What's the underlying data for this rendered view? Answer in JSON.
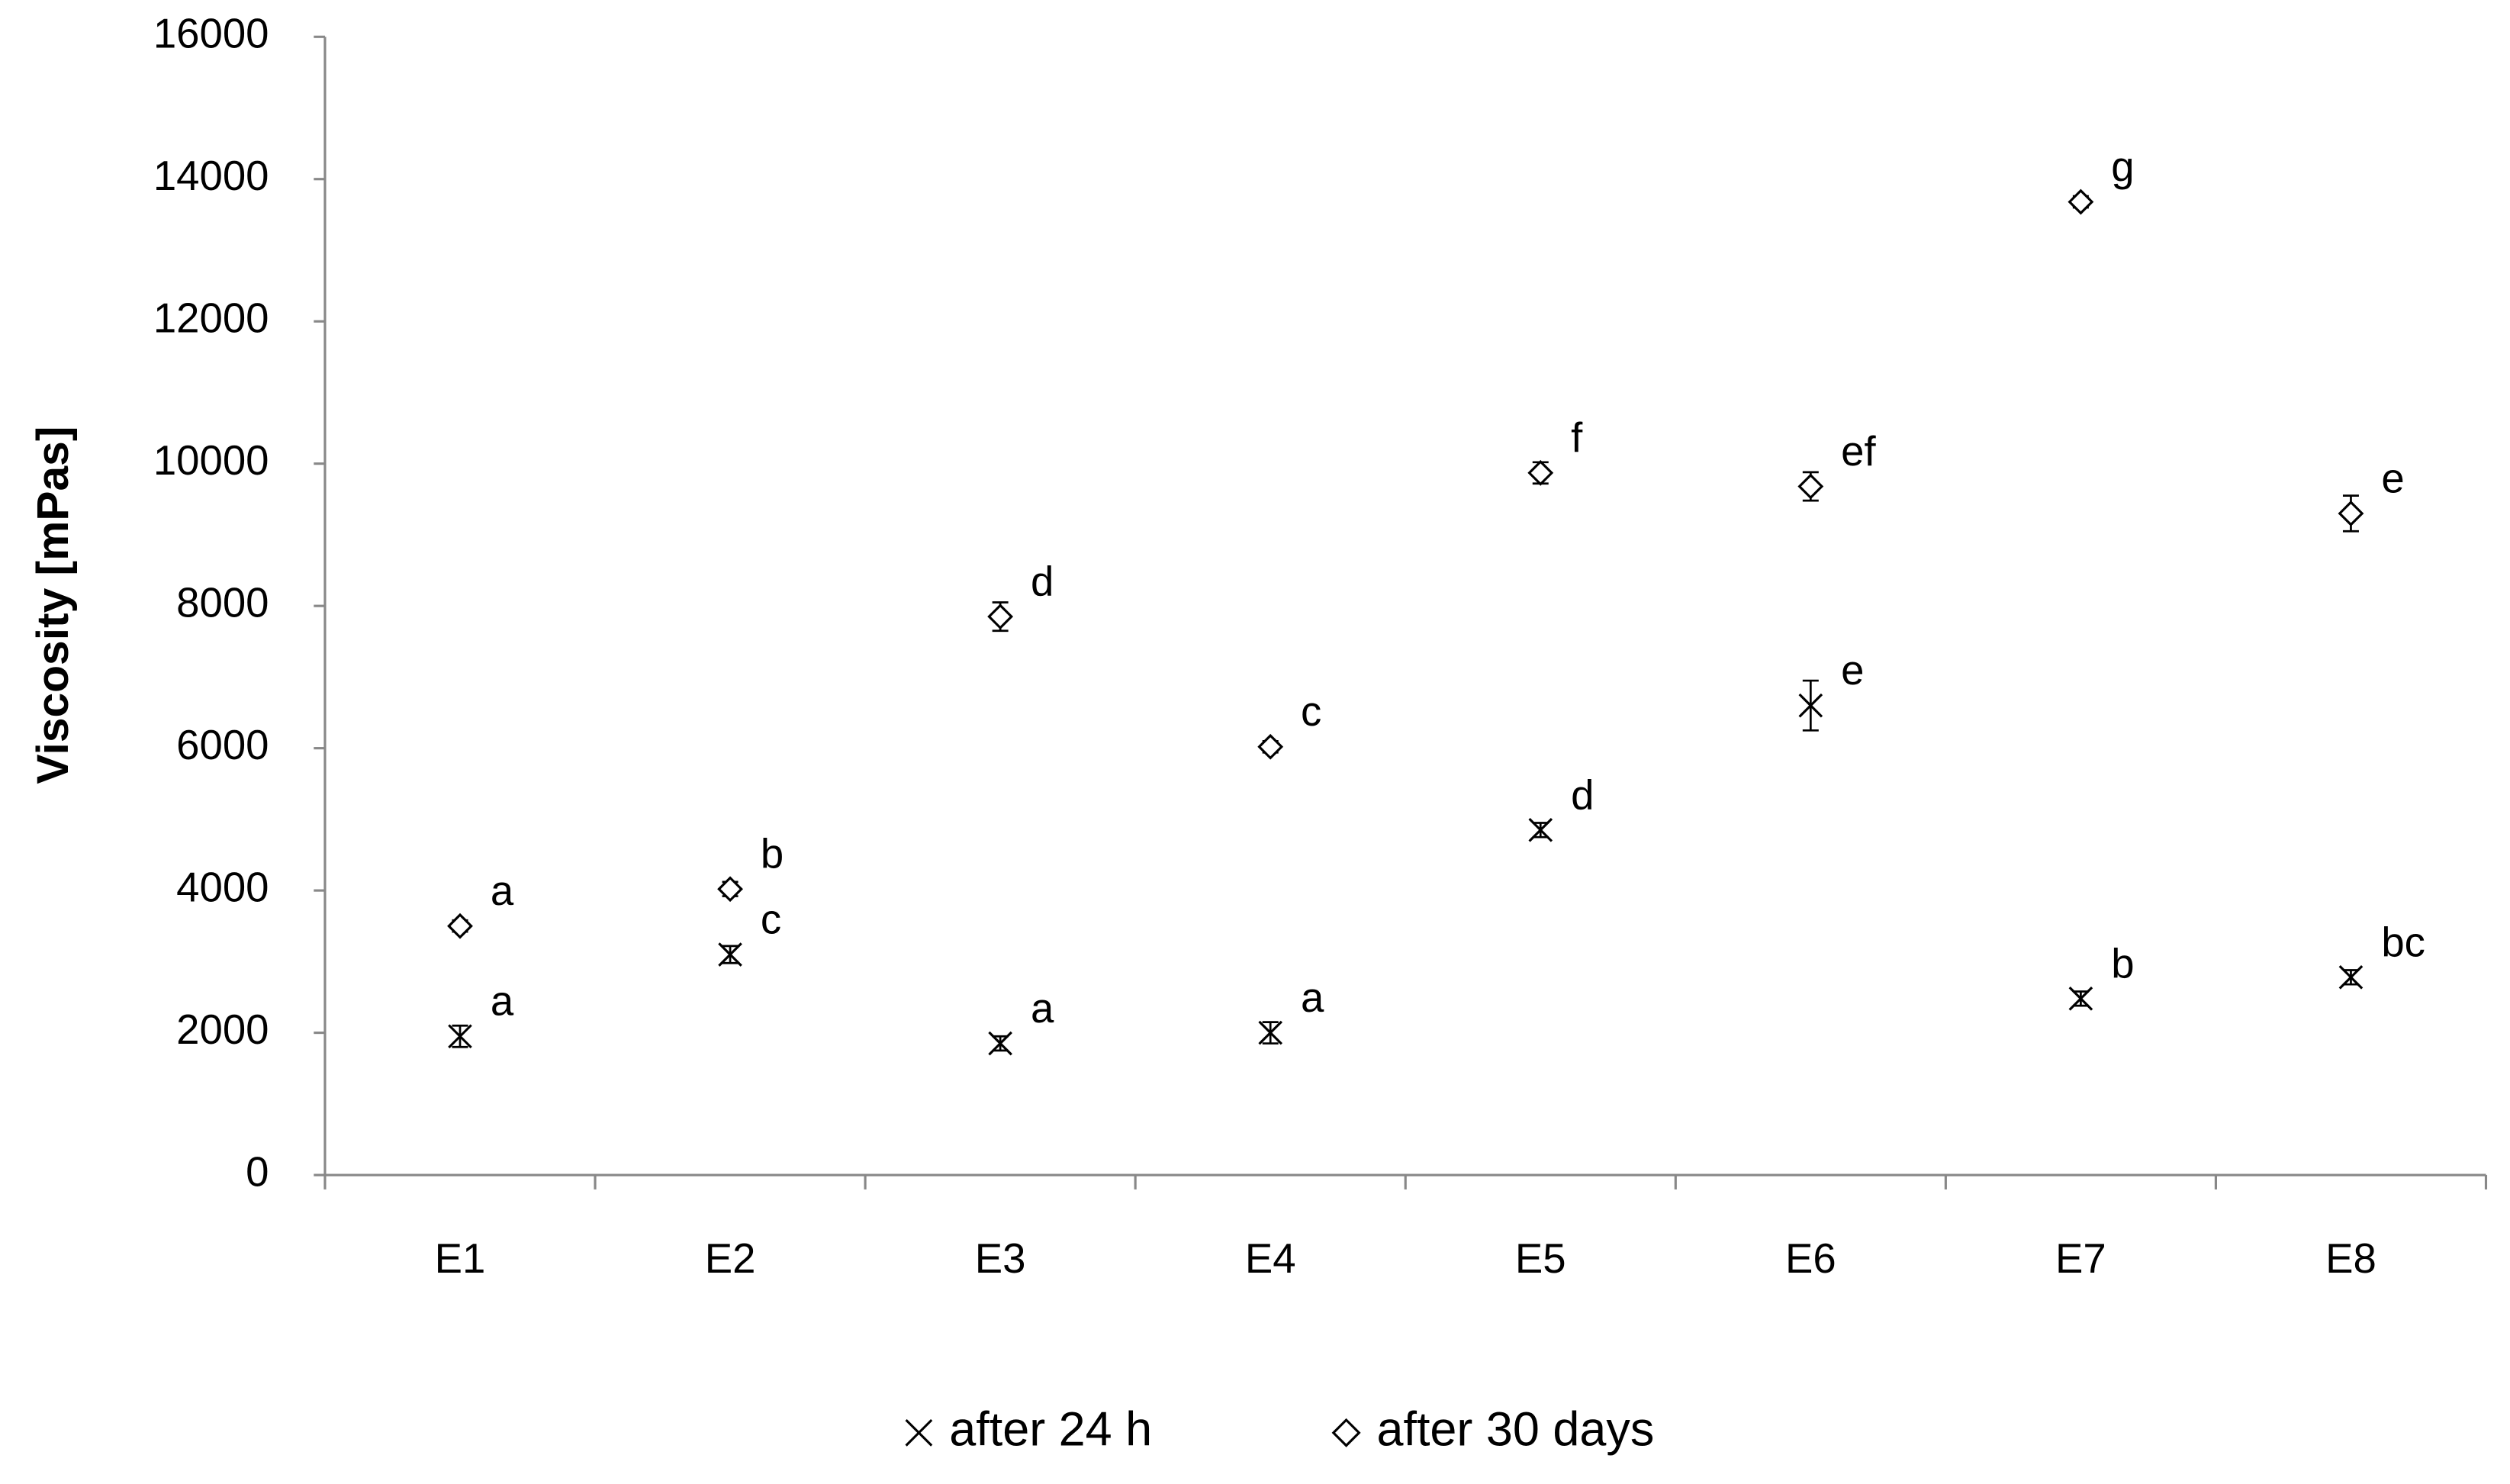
{
  "chart_data": {
    "type": "scatter",
    "ylabel": "Viscosity [mPas]",
    "categories": [
      "E1",
      "E2",
      "E3",
      "E4",
      "E5",
      "E6",
      "E7",
      "E8"
    ],
    "series": [
      {
        "name": "after 24 h",
        "marker": "x",
        "color": "#000000",
        "values": [
          1950,
          3100,
          1850,
          2000,
          4850,
          6600,
          2480,
          2780
        ],
        "errors": [
          150,
          120,
          100,
          150,
          100,
          350,
          100,
          100
        ],
        "letters": [
          "a",
          "c",
          "a",
          "a",
          "d",
          "e",
          "b",
          "bc"
        ]
      },
      {
        "name": "after 30 days",
        "marker": "diamond",
        "color": "#000000",
        "values": [
          3500,
          4020,
          7850,
          6020,
          9870,
          9680,
          13680,
          9300
        ],
        "errors": [
          80,
          100,
          200,
          80,
          150,
          200,
          80,
          250
        ],
        "letters": [
          "a",
          "b",
          "d",
          "c",
          "f",
          "ef",
          "g",
          "e"
        ]
      }
    ],
    "ylim": [
      0,
      16000
    ],
    "yticks": [
      0,
      2000,
      4000,
      6000,
      8000,
      10000,
      12000,
      14000,
      16000
    ],
    "grid": false,
    "legend": "bottom"
  }
}
